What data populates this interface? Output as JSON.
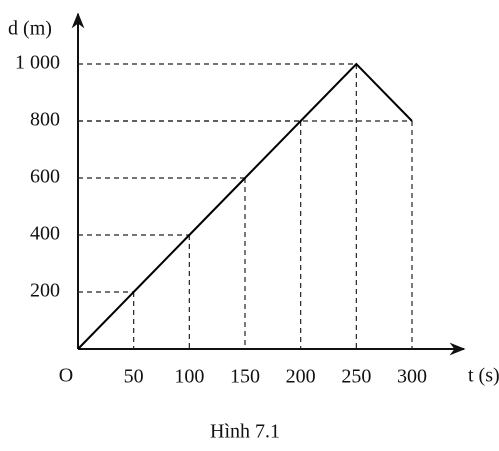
{
  "chart_data": {
    "type": "line",
    "caption": "Hình 7.1",
    "y_axis_label": "d (m)",
    "x_axis_label": "t (s)",
    "origin_label": "O",
    "x": [
      0,
      50,
      100,
      150,
      200,
      250,
      300
    ],
    "values": [
      0,
      200,
      400,
      600,
      800,
      1000,
      800
    ],
    "color": "#000000",
    "xlim": [
      0,
      340
    ],
    "ylim": [
      0,
      1150
    ],
    "xticks": [
      50,
      100,
      150,
      200,
      250,
      300
    ],
    "yticks": [
      200,
      400,
      600,
      800,
      {
        "value": 1000,
        "label": "1 000"
      }
    ],
    "guides": true
  }
}
